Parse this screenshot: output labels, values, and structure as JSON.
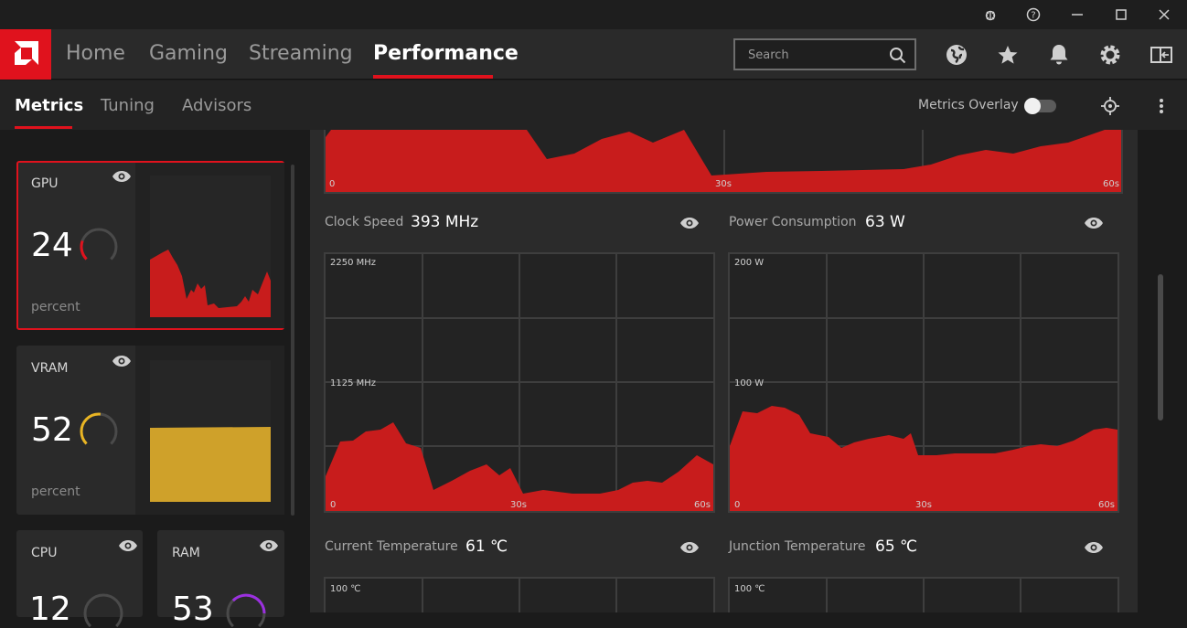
{
  "window": {
    "buttons": [
      "bug-report",
      "help",
      "minimize",
      "maximize",
      "close"
    ]
  },
  "topnav": {
    "items": [
      {
        "label": "Home"
      },
      {
        "label": "Gaming"
      },
      {
        "label": "Streaming"
      },
      {
        "label": "Performance",
        "active": true
      }
    ],
    "search": {
      "placeholder": "Search"
    },
    "icons": [
      "globe-icon",
      "star-icon",
      "bell-icon",
      "gear-icon",
      "sidebar-icon"
    ]
  },
  "subnav": {
    "items": [
      {
        "label": "Metrics",
        "active": true
      },
      {
        "label": "Tuning"
      },
      {
        "label": "Advisors"
      }
    ],
    "overlay_label": "Metrics Overlay",
    "overlay_enabled": false
  },
  "sidebar": {
    "cards": [
      {
        "label": "GPU",
        "value": "24",
        "unit": "percent",
        "gauge_fraction": 0.24,
        "color": "#e0121d"
      },
      {
        "label": "VRAM",
        "value": "52",
        "unit": "percent",
        "gauge_fraction": 0.52,
        "color": "#e8b423"
      },
      {
        "label": "CPU",
        "value": "12"
      },
      {
        "label": "RAM",
        "value": "53",
        "color": "#9b30e0"
      }
    ]
  },
  "charts": {
    "top_partial": {
      "x_start": "0",
      "x_mid": "30s",
      "x_end": "60s"
    },
    "clock_speed": {
      "title": "Clock Speed",
      "value": "393 MHz",
      "y_top": "2250 MHz",
      "y_mid": "1125 MHz",
      "x_start": "0",
      "x_mid": "30s",
      "x_end": "60s"
    },
    "power": {
      "title": "Power Consumption",
      "value": "63 W",
      "y_top": "200 W",
      "y_mid": "100 W",
      "x_start": "0",
      "x_mid": "30s",
      "x_end": "60s"
    },
    "current_temp": {
      "title": "Current Temperature",
      "value": "61 ℃",
      "y_top": "100 ℃"
    },
    "junction_temp": {
      "title": "Junction Temperature",
      "value": "65 ℃",
      "y_top": "100 ℃"
    }
  },
  "colors": {
    "accent": "#e0121d",
    "vram": "#e8b423",
    "ram": "#9b30e0",
    "chart_fill": "#c81c1c"
  }
}
